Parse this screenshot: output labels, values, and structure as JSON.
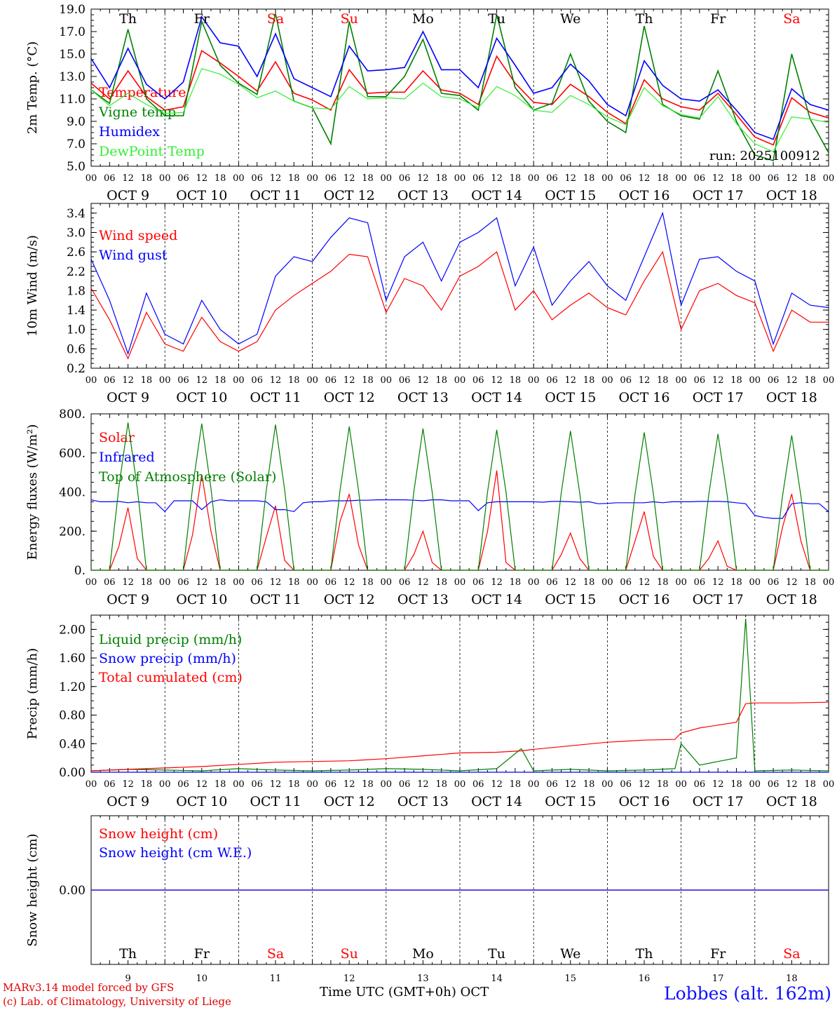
{
  "footer": {
    "credit_line1": "MARv3.14 model forced by GFS",
    "credit_line2": "(c) Lab. of Climatology, University of Liege",
    "x_axis_title": "Time UTC (GMT+0h) OCT",
    "station": "Lobbes (alt. 162m)"
  },
  "colors": {
    "red": "#ff0000",
    "green": "#008000",
    "blue": "#0000ff",
    "lightgreen": "#33ee33",
    "weekend": "#ff0000"
  },
  "chart_data": [
    {
      "type": "line",
      "ylabel": "2m Temp. (°C)",
      "ylim": [
        5,
        19
      ],
      "yticks": [
        "5.0",
        "7.0",
        "9.0",
        "11.0",
        "13.0",
        "15.0",
        "17.0",
        "19.0"
      ],
      "annotation": "run: 2025100912",
      "x_hours": [
        0,
        6,
        12,
        18,
        24,
        30,
        36,
        42,
        48,
        54,
        60,
        66,
        72,
        78,
        84,
        90,
        96,
        102,
        108,
        114,
        120,
        126,
        132,
        138,
        144,
        150,
        156,
        162,
        168,
        174,
        180,
        186,
        192,
        198,
        204,
        210,
        216,
        222,
        228,
        234,
        240
      ],
      "series": [
        {
          "name": "Temperature",
          "color": "#ff0000",
          "values": [
            12.4,
            11.0,
            13.5,
            11.2,
            10.0,
            10.3,
            15.3,
            14.2,
            13.0,
            11.7,
            14.3,
            11.5,
            10.9,
            10.0,
            13.6,
            11.5,
            11.6,
            11.6,
            13.5,
            11.8,
            11.5,
            10.5,
            14.8,
            12.4,
            10.7,
            10.5,
            12.3,
            11.2,
            9.8,
            8.8,
            12.7,
            11.0,
            10.3,
            10.0,
            11.5,
            9.6,
            7.6,
            6.9,
            11.1,
            9.8,
            9.3
          ]
        },
        {
          "name": "Vigne temp",
          "color": "#008000",
          "values": [
            11.8,
            10.6,
            17.2,
            11.0,
            9.5,
            9.5,
            17.9,
            14.0,
            12.4,
            11.4,
            18.6,
            10.8,
            10.2,
            7.0,
            17.9,
            11.2,
            11.2,
            13.0,
            16.3,
            11.5,
            11.3,
            10.0,
            18.5,
            12.0,
            10.0,
            10.6,
            15.0,
            10.8,
            9.0,
            8.0,
            17.5,
            10.5,
            9.5,
            9.2,
            13.5,
            9.0,
            6.0,
            5.5,
            15.0,
            9.2,
            6.2
          ]
        },
        {
          "name": "Humidex",
          "color": "#0000ff",
          "values": [
            14.6,
            12.0,
            15.5,
            12.3,
            11.0,
            12.5,
            18.3,
            16.0,
            15.7,
            13.0,
            16.8,
            12.8,
            12.0,
            11.2,
            15.7,
            13.5,
            13.6,
            13.8,
            17.0,
            13.6,
            13.6,
            12.0,
            16.4,
            14.0,
            11.5,
            12.0,
            14.1,
            12.6,
            10.5,
            9.5,
            14.4,
            12.2,
            11.0,
            10.8,
            11.8,
            10.0,
            8.0,
            7.4,
            11.9,
            10.5,
            10.0
          ]
        },
        {
          "name": "DewPoint Temp",
          "color": "#33ee33",
          "values": [
            11.8,
            10.4,
            11.5,
            10.5,
            9.7,
            9.8,
            13.7,
            13.2,
            12.3,
            11.1,
            11.7,
            10.8,
            10.2,
            10.1,
            12.1,
            11.0,
            11.1,
            11.0,
            12.4,
            11.2,
            11.0,
            10.2,
            12.1,
            11.3,
            10.0,
            9.8,
            11.3,
            10.5,
            9.4,
            8.7,
            12.0,
            10.4,
            9.6,
            9.3,
            11.2,
            8.8,
            7.0,
            6.3,
            9.4,
            9.2,
            8.9
          ]
        }
      ]
    },
    {
      "type": "line",
      "ylabel": "10m Wind (m/s)",
      "ylim": [
        0.2,
        3.6
      ],
      "yticks": [
        "0.2",
        "0.6",
        "1.0",
        "1.4",
        "1.8",
        "2.2",
        "2.6",
        "3.0",
        "3.4"
      ],
      "x_hours": [
        0,
        6,
        12,
        18,
        24,
        30,
        36,
        42,
        48,
        54,
        60,
        66,
        72,
        78,
        84,
        90,
        96,
        102,
        108,
        114,
        120,
        126,
        132,
        138,
        144,
        150,
        156,
        162,
        168,
        174,
        180,
        186,
        192,
        198,
        204,
        210,
        216,
        222,
        228,
        234,
        240
      ],
      "series": [
        {
          "name": "Wind speed",
          "color": "#ff0000",
          "values": [
            1.85,
            1.2,
            0.4,
            1.35,
            0.7,
            0.55,
            1.25,
            0.75,
            0.55,
            0.75,
            1.4,
            1.7,
            1.95,
            2.2,
            2.55,
            2.5,
            1.35,
            2.05,
            1.9,
            1.4,
            2.1,
            2.3,
            2.6,
            1.4,
            1.8,
            1.2,
            1.5,
            1.75,
            1.45,
            1.3,
            2.0,
            2.6,
            1.0,
            1.8,
            1.95,
            1.7,
            1.55,
            0.55,
            1.4,
            1.15,
            1.15
          ]
        },
        {
          "name": "Wind gust",
          "color": "#0000ff",
          "values": [
            2.45,
            1.6,
            0.5,
            1.75,
            0.9,
            0.7,
            1.6,
            1.0,
            0.7,
            0.9,
            2.1,
            2.5,
            2.4,
            2.9,
            3.3,
            3.2,
            1.6,
            2.5,
            2.8,
            2.0,
            2.8,
            3.0,
            3.3,
            1.9,
            2.7,
            1.5,
            2.0,
            2.4,
            1.9,
            1.6,
            2.5,
            3.4,
            1.5,
            2.45,
            2.5,
            2.2,
            2.0,
            0.7,
            1.75,
            1.5,
            1.45
          ]
        }
      ]
    },
    {
      "type": "line",
      "ylabel": "Energy fluxes (W/m²)",
      "ylim": [
        0,
        800
      ],
      "yticks": [
        "0.",
        "200.",
        "400.",
        "600.",
        "800."
      ],
      "x_hours": [
        0,
        3,
        6,
        9,
        12,
        15,
        18,
        21,
        24,
        27,
        30,
        33,
        36,
        39,
        42,
        45,
        48,
        51,
        54,
        57,
        60,
        63,
        66,
        69,
        72,
        75,
        78,
        81,
        84,
        87,
        90,
        93,
        96,
        99,
        102,
        105,
        108,
        111,
        114,
        117,
        120,
        123,
        126,
        129,
        132,
        135,
        138,
        141,
        144,
        147,
        150,
        153,
        156,
        159,
        162,
        165,
        168,
        171,
        174,
        177,
        180,
        183,
        186,
        189,
        192,
        195,
        198,
        201,
        204,
        207,
        210,
        213,
        216,
        219,
        222,
        225,
        228,
        231,
        234,
        237,
        240
      ],
      "series": [
        {
          "name": "Solar",
          "color": "#ff0000",
          "values": [
            0,
            0,
            0,
            120,
            320,
            60,
            0,
            0,
            0,
            0,
            0,
            180,
            490,
            200,
            0,
            0,
            0,
            0,
            0,
            170,
            330,
            50,
            0,
            0,
            0,
            0,
            0,
            250,
            390,
            130,
            0,
            0,
            0,
            0,
            0,
            80,
            200,
            40,
            0,
            0,
            0,
            0,
            0,
            200,
            510,
            40,
            0,
            0,
            0,
            0,
            0,
            80,
            190,
            60,
            0,
            0,
            0,
            0,
            0,
            150,
            300,
            70,
            0,
            0,
            0,
            0,
            0,
            60,
            150,
            20,
            0,
            0,
            0,
            0,
            0,
            220,
            390,
            150,
            0,
            0,
            0
          ]
        },
        {
          "name": "Infrared",
          "color": "#0000ff",
          "values": [
            360,
            350,
            350,
            352,
            345,
            350,
            345,
            345,
            300,
            355,
            355,
            355,
            310,
            350,
            360,
            355,
            355,
            355,
            355,
            350,
            310,
            310,
            300,
            345,
            350,
            350,
            355,
            355,
            355,
            358,
            358,
            360,
            360,
            360,
            360,
            358,
            355,
            360,
            360,
            355,
            355,
            355,
            305,
            345,
            350,
            350,
            350,
            350,
            350,
            348,
            352,
            352,
            350,
            348,
            350,
            340,
            342,
            345,
            345,
            345,
            345,
            350,
            345,
            350,
            350,
            350,
            352,
            352,
            352,
            350,
            345,
            340,
            280,
            270,
            265,
            265,
            340,
            345,
            340,
            340,
            300
          ]
        },
        {
          "name": "Top of Atmosphere (Solar)",
          "color": "#008000",
          "values": [
            0,
            0,
            0,
            420,
            755,
            420,
            0,
            0,
            0,
            0,
            0,
            420,
            750,
            420,
            0,
            0,
            0,
            0,
            0,
            410,
            745,
            410,
            0,
            0,
            0,
            0,
            0,
            410,
            735,
            410,
            0,
            0,
            0,
            0,
            0,
            400,
            725,
            400,
            0,
            0,
            0,
            0,
            0,
            400,
            718,
            400,
            0,
            0,
            0,
            0,
            0,
            395,
            712,
            395,
            0,
            0,
            0,
            0,
            0,
            390,
            705,
            390,
            0,
            0,
            0,
            0,
            0,
            385,
            697,
            385,
            0,
            0,
            0,
            0,
            0,
            380,
            690,
            380,
            0,
            0,
            0
          ]
        }
      ]
    },
    {
      "type": "line",
      "ylabel": "Precip (mm/h)",
      "ylim": [
        0,
        2.2
      ],
      "yticks": [
        "0.00",
        "0.40",
        "0.80",
        "1.20",
        "1.60",
        "2.00"
      ],
      "x_hours": [
        0,
        12,
        24,
        36,
        48,
        60,
        72,
        84,
        96,
        108,
        120,
        132,
        140,
        144,
        156,
        168,
        180,
        190,
        192,
        198,
        204,
        210,
        213,
        216,
        228,
        240
      ],
      "series": [
        {
          "name": "Liquid precip (mm/h)",
          "color": "#008000",
          "values": [
            0.02,
            0.04,
            0.03,
            0.02,
            0.05,
            0.03,
            0.02,
            0.03,
            0.05,
            0.04,
            0.02,
            0.05,
            0.33,
            0.02,
            0.04,
            0.02,
            0.03,
            0.05,
            0.4,
            0.1,
            0.15,
            0.2,
            2.15,
            0.02,
            0.03,
            0.02
          ]
        },
        {
          "name": "Snow precip (mm/h)",
          "color": "#0000ff",
          "values": [
            0,
            0,
            0,
            0,
            0,
            0,
            0,
            0,
            0,
            0,
            0,
            0,
            0,
            0,
            0,
            0,
            0,
            0,
            0,
            0,
            0,
            0,
            0,
            0,
            0,
            0
          ]
        },
        {
          "name": "Total cumulated (cm)",
          "color": "#ff0000",
          "values": [
            0.02,
            0.04,
            0.06,
            0.08,
            0.11,
            0.14,
            0.15,
            0.16,
            0.19,
            0.23,
            0.27,
            0.28,
            0.3,
            0.32,
            0.37,
            0.42,
            0.45,
            0.46,
            0.55,
            0.62,
            0.66,
            0.7,
            0.96,
            0.97,
            0.97,
            0.98
          ]
        }
      ]
    },
    {
      "type": "line",
      "ylabel": "Snow height (cm)",
      "ylim": [
        -1,
        1
      ],
      "yticks": [
        "0.00"
      ],
      "x_hours": [
        0,
        240
      ],
      "series": [
        {
          "name": "Snow height (cm)",
          "color": "#ff0000",
          "values": [
            0,
            0
          ]
        },
        {
          "name": "Snow height (cm W.E.)",
          "color": "#0000ff",
          "values": [
            0,
            0
          ]
        }
      ]
    }
  ],
  "days": [
    {
      "abbr": "Th",
      "date": "OCT  9",
      "num": "9",
      "weekend": false
    },
    {
      "abbr": "Fr",
      "date": "OCT 10",
      "num": "10",
      "weekend": false
    },
    {
      "abbr": "Sa",
      "date": "OCT 11",
      "num": "11",
      "weekend": true
    },
    {
      "abbr": "Su",
      "date": "OCT 12",
      "num": "12",
      "weekend": true
    },
    {
      "abbr": "Mo",
      "date": "OCT 13",
      "num": "13",
      "weekend": false
    },
    {
      "abbr": "Tu",
      "date": "OCT 14",
      "num": "14",
      "weekend": false
    },
    {
      "abbr": "We",
      "date": "OCT 15",
      "num": "15",
      "weekend": false
    },
    {
      "abbr": "Th",
      "date": "OCT 16",
      "num": "16",
      "weekend": false
    },
    {
      "abbr": "Fr",
      "date": "OCT 17",
      "num": "17",
      "weekend": false
    },
    {
      "abbr": "Sa",
      "date": "OCT 18",
      "num": "18",
      "weekend": true
    }
  ],
  "hour_ticks": [
    "00",
    "06",
    "12",
    "18"
  ],
  "hour_end": "00"
}
